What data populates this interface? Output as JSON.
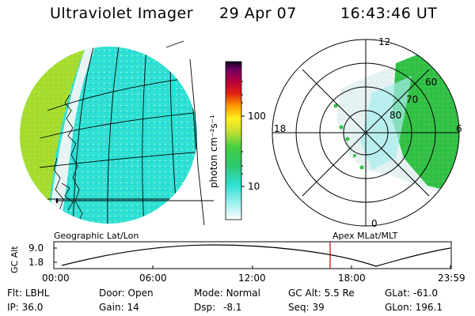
{
  "header": {
    "instrument": "Ultraviolet Imager",
    "date": "29 Apr 07",
    "time": "16:43:46 UT"
  },
  "colorbar": {
    "unit": "photon cm⁻²s⁻¹",
    "labels": [
      "100",
      "10"
    ]
  },
  "geo_panel": {
    "caption": "Geographic Lat/Lon"
  },
  "polar_panel": {
    "caption": "Apex MLat/MLT",
    "mlt_labels": {
      "top": "12",
      "left": "18",
      "right": "6",
      "bottom": "0"
    },
    "lat_labels": [
      "60",
      "70",
      "80"
    ]
  },
  "altitude_plot": {
    "ylabel": "GC Alt",
    "ymax_label": "9.0",
    "ymin_label": "1.8",
    "x_ticks": [
      "00:00",
      "06:00",
      "12:00",
      "18:00",
      "23:59"
    ],
    "marker_time": "16:43:46",
    "colors": {
      "marker": "#cc0000",
      "curve": "#000000"
    }
  },
  "info": {
    "row1": [
      {
        "key": "Flt:",
        "value": "LBHL"
      },
      {
        "key": "Door:",
        "value": "Open"
      },
      {
        "key": "Mode:",
        "value": "Normal"
      },
      {
        "key": "GC Alt:",
        "value": "5.5 Re"
      },
      {
        "key": "GLat:",
        "value": "-61.0"
      }
    ],
    "row2": [
      {
        "key": "IP:",
        "value": "36.0"
      },
      {
        "key": "Gain:",
        "value": "14"
      },
      {
        "key": "Dsp:",
        "value": "-8.1"
      },
      {
        "key": "Seq:",
        "value": "39"
      },
      {
        "key": "GLon:",
        "value": "196.1"
      }
    ]
  },
  "palette": {
    "green": "#33c046",
    "cyan": "#2ee0d4",
    "yellow_green": "#a8e030",
    "pale": "#dceeee"
  }
}
